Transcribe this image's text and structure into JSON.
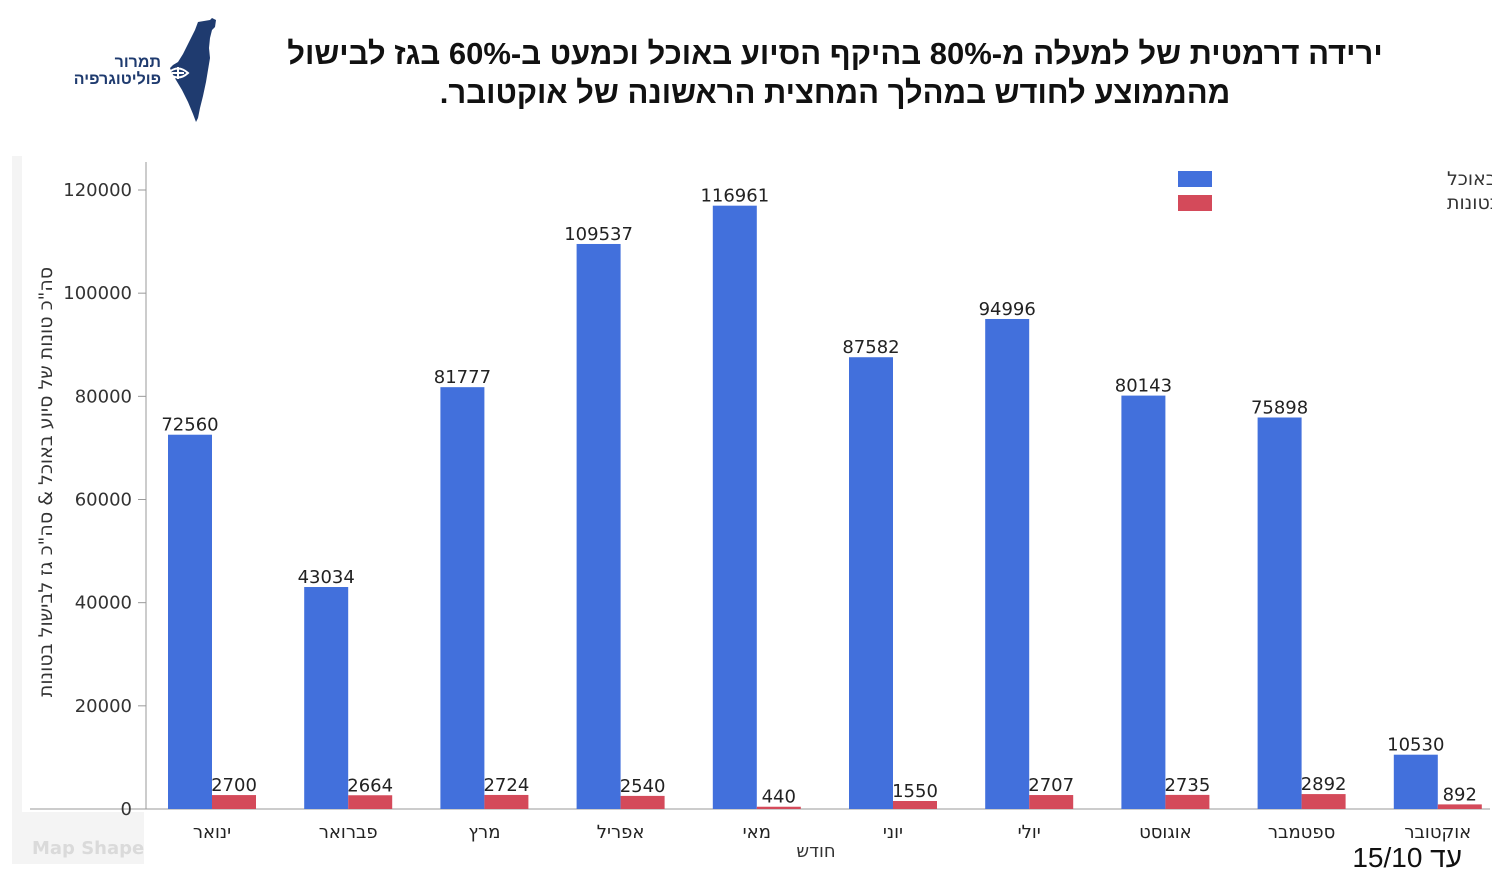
{
  "title_line1": "ירידה דרמטית של למעלה מ-80% בהיקף הסיוע באוכל וכמעט ב-60% בגז לבישול",
  "title_line2": "מהממוצע לחודש במהלך המחצית הראשונה של אוקטובר.",
  "logo": {
    "line1": "תמרור",
    "line2": "פוליטוגרפיה",
    "icon": "israel-map-icon",
    "color": "#1f3b6f"
  },
  "watermark": "Map Shape",
  "date_note": "עד 15/10",
  "chart_data": {
    "type": "bar",
    "xlabel": "חודש",
    "ylabel": "סה\"כ טונות של סיוע באוכל & סה\"כ גז לבישול בטונות",
    "ylim": [
      0,
      120000
    ],
    "yticks": [
      "0",
      "20000",
      "40000",
      "60000",
      "80000",
      "100000",
      "120000"
    ],
    "grid": false,
    "legend_position": "top-right",
    "categories": [
      "ינואר",
      "פברואר",
      "מרץ",
      "אפריל",
      "מאי",
      "יוני",
      "יולי",
      "אוגוסט",
      "ספטמבר",
      "אוקטובר"
    ],
    "series": [
      {
        "name": "סה\"כ טונות של סיוע באוכל",
        "color": "#4270dc",
        "values": [
          72560,
          43034,
          81777,
          109537,
          116961,
          87582,
          94996,
          80143,
          75898,
          10530
        ]
      },
      {
        "name": "סה\"כ גז לבישול בטונות",
        "color": "#d44a5a",
        "values": [
          2700,
          2664,
          2724,
          2540,
          440,
          1550,
          2707,
          2735,
          2892,
          892
        ]
      }
    ]
  }
}
